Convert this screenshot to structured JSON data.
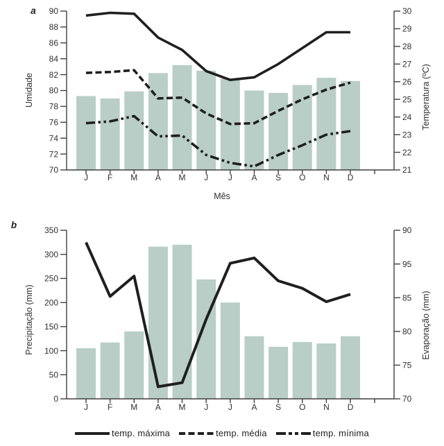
{
  "page": {
    "background": "#ffffff"
  },
  "colors": {
    "bar_fill": "#b8cec6",
    "line": "#1f1f1f",
    "axis": "#3f3f3f",
    "text": "#2f2f2f"
  },
  "months": [
    "J",
    "F",
    "M",
    "A",
    "M",
    "J",
    "J",
    "A",
    "S",
    "O",
    "N",
    "D"
  ],
  "legend": {
    "items": [
      {
        "label": "temp. máxima",
        "style": "solid"
      },
      {
        "label": "temp. média",
        "style": "dashed"
      },
      {
        "label": "temp. mínima",
        "style": "dashdotdot"
      }
    ]
  },
  "chart_data": [
    {
      "panel_label": "a",
      "type": "bar+line",
      "categories": [
        "J",
        "F",
        "M",
        "A",
        "M",
        "J",
        "J",
        "A",
        "S",
        "O",
        "N",
        "D"
      ],
      "xlabel": "Mês",
      "left_axis": {
        "title": "Umidade",
        "min": 70,
        "max": 90,
        "step": 2
      },
      "right_axis": {
        "title": "Temperatura (ºC)",
        "min": 21,
        "max": 30,
        "step": 1
      },
      "bars": {
        "name": "Umidade",
        "axis": "left",
        "values": [
          79.3,
          79.0,
          79.9,
          82.2,
          83.2,
          82.5,
          81.5,
          80.0,
          79.7,
          80.7,
          81.6,
          81.2
        ]
      },
      "series": [
        {
          "name": "temp. máxima",
          "style": "solid",
          "axis": "right",
          "values": [
            29.75,
            29.9,
            29.85,
            28.5,
            27.8,
            26.6,
            26.1,
            26.25,
            27.0,
            27.9,
            28.8,
            28.8
          ]
        },
        {
          "name": "temp. média",
          "style": "dashed",
          "axis": "right",
          "values": [
            26.5,
            26.55,
            26.65,
            25.05,
            25.1,
            24.2,
            23.6,
            23.65,
            24.35,
            25.0,
            25.55,
            25.95
          ]
        },
        {
          "name": "temp. mínima",
          "style": "dashdotdot",
          "axis": "right",
          "values": [
            23.65,
            23.75,
            24.05,
            22.9,
            22.95,
            21.85,
            21.4,
            21.2,
            21.85,
            22.4,
            23.0,
            23.2
          ]
        }
      ]
    },
    {
      "panel_label": "b",
      "type": "bar+line",
      "categories": [
        "J",
        "F",
        "M",
        "A",
        "M",
        "J",
        "J",
        "A",
        "S",
        "O",
        "N",
        "D"
      ],
      "xlabel": "",
      "left_axis": {
        "title": "Precipitação (mm)",
        "min": 0,
        "max": 350,
        "step": 50
      },
      "right_axis": {
        "title": "Evaporação (mm)",
        "min": 70,
        "max": 95,
        "tick_labels_top_to_bottom": [
          "90",
          "95",
          "85",
          "80",
          "75",
          "70"
        ]
      },
      "bars": {
        "name": "Precipitação (mm)",
        "axis": "left",
        "values": [
          105,
          117,
          140,
          316,
          320,
          248,
          200,
          130,
          108,
          118,
          115,
          130
        ]
      },
      "series": [
        {
          "name": "Evaporação (mm)",
          "style": "solid",
          "axis": "right",
          "values": [
            93.2,
            85.2,
            88.2,
            71.8,
            72.4,
            81.8,
            90.1,
            90.9,
            87.5,
            86.4,
            84.4,
            85.5
          ]
        }
      ]
    }
  ]
}
